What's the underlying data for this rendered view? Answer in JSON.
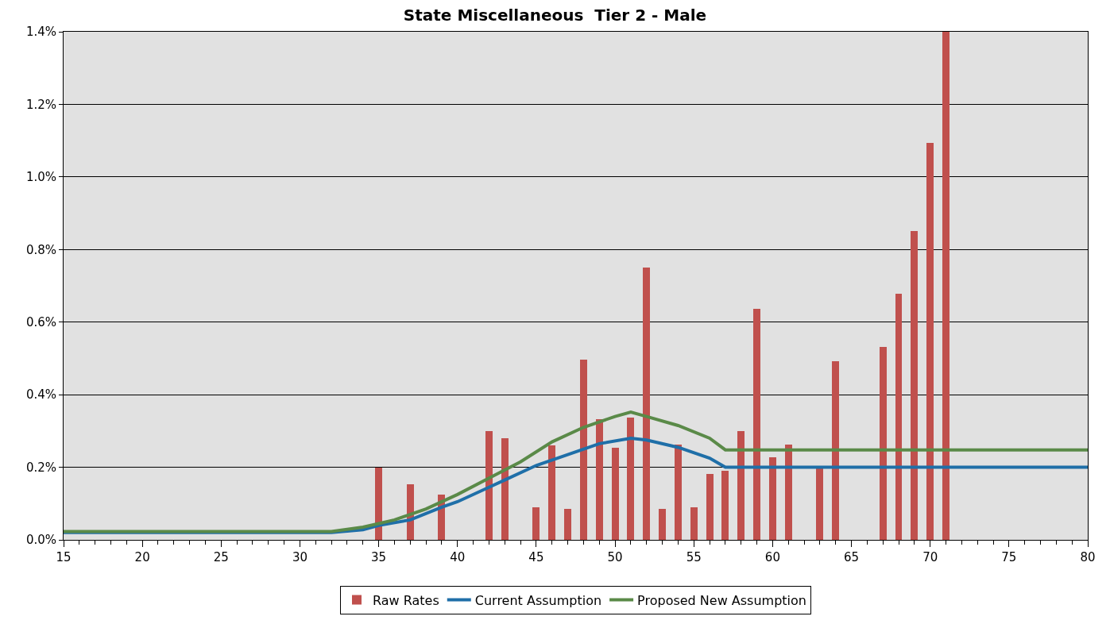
{
  "chart_data": {
    "type": "bar",
    "title": "State Miscellaneous  Tier 2 - Male",
    "xlim": [
      15,
      80
    ],
    "xticks": [
      15,
      20,
      25,
      30,
      35,
      40,
      45,
      50,
      55,
      60,
      65,
      70,
      75,
      80
    ],
    "ylim": [
      0,
      1.4
    ],
    "yticks": [
      {
        "value": 0,
        "label": "0.0%"
      },
      {
        "value": 0.2,
        "label": "0.2%"
      },
      {
        "value": 0.4,
        "label": "0.4%"
      },
      {
        "value": 0.6,
        "label": "0.6%"
      },
      {
        "value": 0.8,
        "label": "0.8%"
      },
      {
        "value": 1.0,
        "label": "1.0%"
      },
      {
        "value": 1.2,
        "label": "1.2%"
      },
      {
        "value": 1.4,
        "label": "1.4%"
      }
    ],
    "grid": "y",
    "legend": "bottom",
    "series": [
      {
        "name": "Raw Rates",
        "color": "#c0504d",
        "x": [
          35,
          37,
          39,
          42,
          43,
          45,
          46,
          47,
          48,
          49,
          50,
          51,
          52,
          53,
          54,
          55,
          56,
          57,
          58,
          59,
          60,
          61,
          63,
          64,
          67,
          68,
          69,
          70,
          71
        ],
        "values": [
          0.2,
          0.154,
          0.124,
          0.3,
          0.28,
          0.09,
          0.26,
          0.085,
          0.497,
          0.333,
          0.254,
          0.337,
          0.751,
          0.085,
          0.263,
          0.09,
          0.181,
          0.19,
          0.3,
          0.636,
          0.228,
          0.263,
          0.2,
          0.493,
          0.531,
          0.679,
          0.852,
          1.093,
          1.4
        ]
      },
      {
        "name": "Current Assumption",
        "type": "line",
        "color": "#1f6fa8",
        "x": [
          15,
          32,
          34,
          35,
          37,
          39,
          40,
          42,
          43,
          45,
          47,
          49,
          51,
          52,
          54,
          56,
          57,
          80
        ],
        "values": [
          0.02,
          0.02,
          0.028,
          0.04,
          0.055,
          0.09,
          0.105,
          0.145,
          0.165,
          0.205,
          0.235,
          0.265,
          0.28,
          0.275,
          0.255,
          0.225,
          0.2,
          0.2
        ]
      },
      {
        "name": "Proposed New Assumption",
        "type": "line",
        "color": "#5a8a48",
        "x": [
          15,
          32,
          34,
          36,
          38,
          40,
          42,
          44,
          46,
          48,
          50,
          51,
          52,
          54,
          56,
          57,
          80
        ],
        "values": [
          0.023,
          0.023,
          0.035,
          0.055,
          0.085,
          0.125,
          0.17,
          0.215,
          0.27,
          0.31,
          0.34,
          0.352,
          0.34,
          0.315,
          0.28,
          0.248,
          0.248
        ]
      }
    ]
  }
}
